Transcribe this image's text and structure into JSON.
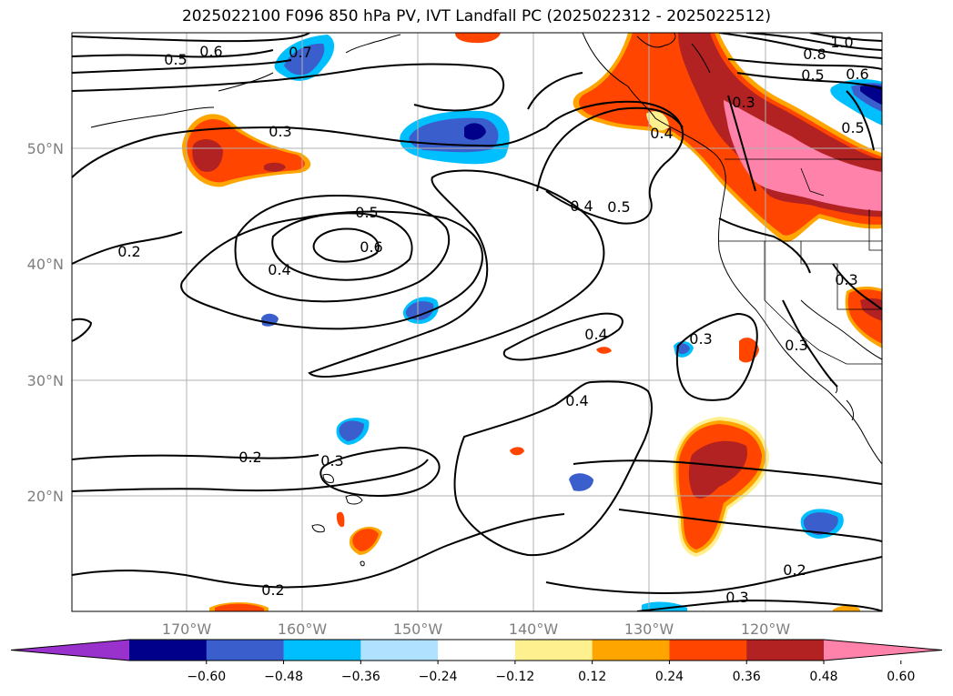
{
  "title": "2025022100 F096 850 hPa PV, IVT Landfall PC (2025022312 - 2025022512)",
  "map": {
    "lat_labels": [
      "50°N",
      "40°N",
      "30°N",
      "20°N"
    ],
    "lon_labels": [
      "170°W",
      "160°W",
      "150°W",
      "140°W",
      "130°W",
      "120°W"
    ],
    "contour_labels": [
      "0.6",
      "0.5",
      "0.7",
      "0.3",
      "0.2",
      "0.5",
      "0.6",
      "0.4",
      "0.4",
      "0.5",
      "0.4",
      "0.3",
      "0.4",
      "0.4",
      "0.2",
      "0.3",
      "0.2",
      "0.3",
      "0.2",
      "1.0",
      "0.8",
      "0.5",
      "0.6",
      "0.5",
      "0.3",
      "0.3",
      "0.3"
    ]
  },
  "colorbar": {
    "ticks": [
      "−0.60",
      "−0.48",
      "−0.36",
      "−0.24",
      "−0.12",
      "0.12",
      "0.24",
      "0.36",
      "0.48",
      "0.60"
    ],
    "colors": [
      "#9932cc",
      "#00008b",
      "#3a5fcd",
      "#00bfff",
      "#b0e2ff",
      "#ffffff",
      "#fff08f",
      "#ffa500",
      "#ff4500",
      "#b22222",
      "#ff82ab"
    ]
  }
}
